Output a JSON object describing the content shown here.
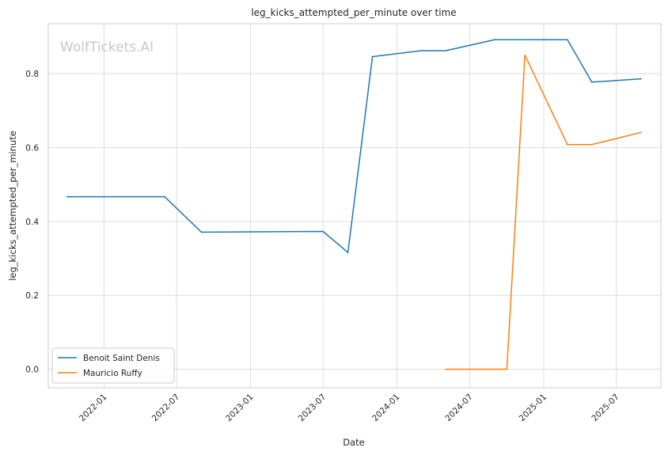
{
  "chart_data": {
    "type": "line",
    "title": "leg_kicks_attempted_per_minute over time",
    "xlabel": "Date",
    "ylabel": "leg_kicks_attempted_per_minute",
    "watermark": "WolfTickets.AI",
    "x_ticks": [
      "2022-01",
      "2022-07",
      "2023-01",
      "2023-07",
      "2024-01",
      "2024-07",
      "2025-01",
      "2025-07"
    ],
    "y_ticks": [
      "0.0",
      "0.2",
      "0.4",
      "0.6",
      "0.8"
    ],
    "ylim": [
      -0.05,
      0.935
    ],
    "xlim": [
      "2021-08-15",
      "2025-10-20"
    ],
    "grid": true,
    "legend_position": "lower-left",
    "series": [
      {
        "name": "Benoit Saint Denis",
        "color": "#1f77b4",
        "points": [
          {
            "x": "2021-10-01",
            "y": 0.467
          },
          {
            "x": "2022-06-01",
            "y": 0.467
          },
          {
            "x": "2022-09-01",
            "y": 0.371
          },
          {
            "x": "2023-07-01",
            "y": 0.373
          },
          {
            "x": "2023-09-01",
            "y": 0.316
          },
          {
            "x": "2023-11-01",
            "y": 0.846
          },
          {
            "x": "2024-03-01",
            "y": 0.862
          },
          {
            "x": "2024-05-01",
            "y": 0.862
          },
          {
            "x": "2024-09-01",
            "y": 0.892
          },
          {
            "x": "2025-03-01",
            "y": 0.892
          },
          {
            "x": "2025-05-01",
            "y": 0.777
          },
          {
            "x": "2025-09-01",
            "y": 0.786
          }
        ]
      },
      {
        "name": "Mauricio Ruffy",
        "color": "#ff7f0e",
        "points": [
          {
            "x": "2024-05-01",
            "y": 0.0
          },
          {
            "x": "2024-10-01",
            "y": 0.0
          },
          {
            "x": "2024-11-15",
            "y": 0.85
          },
          {
            "x": "2025-03-01",
            "y": 0.608
          },
          {
            "x": "2025-05-01",
            "y": 0.608
          },
          {
            "x": "2025-09-01",
            "y": 0.641
          }
        ]
      }
    ]
  }
}
